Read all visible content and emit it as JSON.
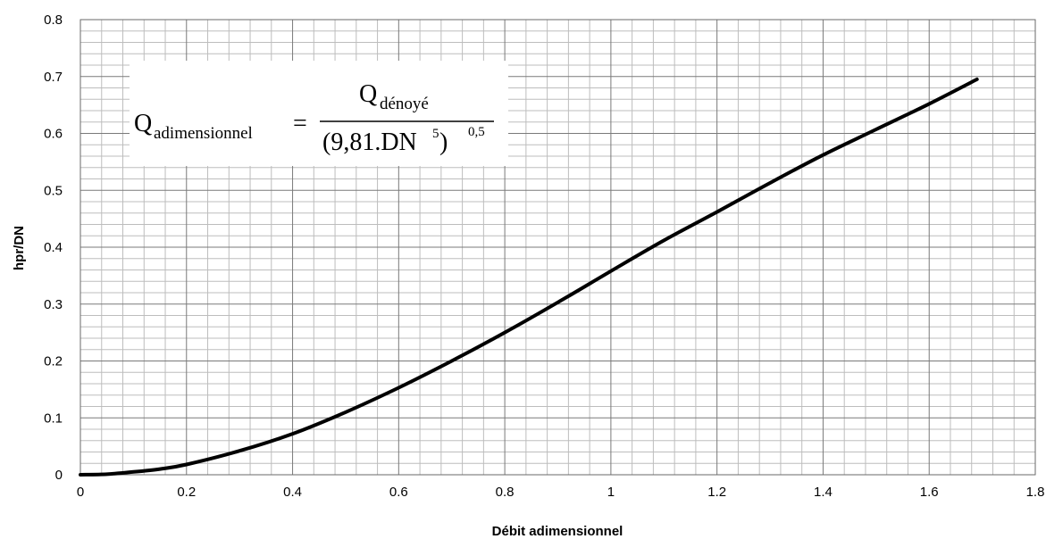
{
  "chart_data": {
    "type": "line",
    "title": "",
    "xlabel": "Débit adimensionnel",
    "ylabel": "hpr/DN",
    "xlim": [
      0,
      1.8
    ],
    "ylim": [
      0,
      0.8
    ],
    "x_ticks": [
      "0",
      "0.2",
      "0.4",
      "0.6",
      "0.8",
      "1",
      "1.2",
      "1.4",
      "1.6",
      "1.8"
    ],
    "y_ticks": [
      "0",
      "0.1",
      "0.2",
      "0.3",
      "0.4",
      "0.5",
      "0.6",
      "0.7",
      "0.8"
    ],
    "x_tick_values": [
      0,
      0.2,
      0.4,
      0.6,
      0.8,
      1.0,
      1.2,
      1.4,
      1.6,
      1.8
    ],
    "y_tick_values": [
      0,
      0.1,
      0.2,
      0.3,
      0.4,
      0.5,
      0.6,
      0.7,
      0.8
    ],
    "major_grid": true,
    "minor_divisions": {
      "x": 5,
      "y": 5
    },
    "series": [
      {
        "x": [
          0,
          0.05,
          0.1,
          0.15,
          0.2,
          0.3,
          0.4,
          0.5,
          0.6,
          0.7,
          0.8,
          0.9,
          1.0,
          1.1,
          1.2,
          1.3,
          1.4,
          1.5,
          1.6,
          1.69
        ],
        "y": [
          0,
          0.001,
          0.005,
          0.01,
          0.018,
          0.042,
          0.072,
          0.11,
          0.153,
          0.2,
          0.25,
          0.303,
          0.358,
          0.412,
          0.462,
          0.513,
          0.562,
          0.607,
          0.652,
          0.695
        ],
        "color": "#000000"
      }
    ],
    "annotation": {
      "lhs_main": "Q",
      "lhs_sub": "adimensionnel",
      "equals": "=",
      "num_main": "Q",
      "num_sub": "dénoyé",
      "den_open": "(9,81.DN",
      "den_sup": "5",
      "den_close": " )",
      "den_exp": "0,5"
    }
  }
}
